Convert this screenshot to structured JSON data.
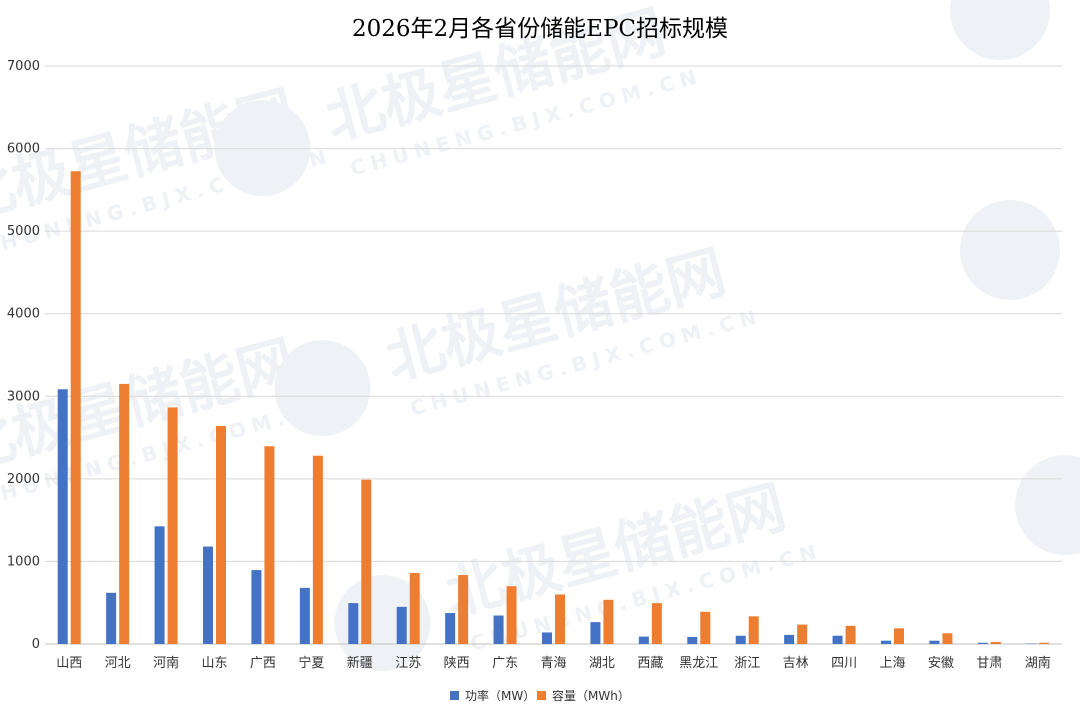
{
  "chart_data": {
    "type": "bar",
    "title": "2026年2月各省份储能EPC招标规模",
    "categories": [
      "山西",
      "河北",
      "河南",
      "山东",
      "广西",
      "宁夏",
      "新疆",
      "江苏",
      "陕西",
      "广东",
      "青海",
      "湖北",
      "西藏",
      "黑龙江",
      "浙江",
      "吉林",
      "四川",
      "上海",
      "安徽",
      "甘肃",
      "湖南"
    ],
    "series": [
      {
        "name": "功率（MW）",
        "color": "#4472c4",
        "values": [
          3085,
          620,
          1425,
          1180,
          895,
          680,
          495,
          450,
          375,
          345,
          140,
          265,
          90,
          85,
          100,
          110,
          100,
          40,
          40,
          15,
          5
        ]
      },
      {
        "name": "容量（MWh）",
        "color": "#ed7d31",
        "values": [
          5725,
          3150,
          2865,
          2640,
          2395,
          2280,
          1990,
          860,
          835,
          700,
          600,
          535,
          495,
          390,
          335,
          235,
          220,
          190,
          130,
          25,
          15
        ]
      }
    ],
    "ylim": [
      0,
      7000
    ],
    "yticks": [
      0,
      1000,
      2000,
      3000,
      4000,
      5000,
      6000,
      7000
    ],
    "grid": true,
    "legend": "bottom"
  },
  "watermark": {
    "text": "北极星储能网",
    "sub": "CHUNENG.BJX.COM.CN"
  }
}
